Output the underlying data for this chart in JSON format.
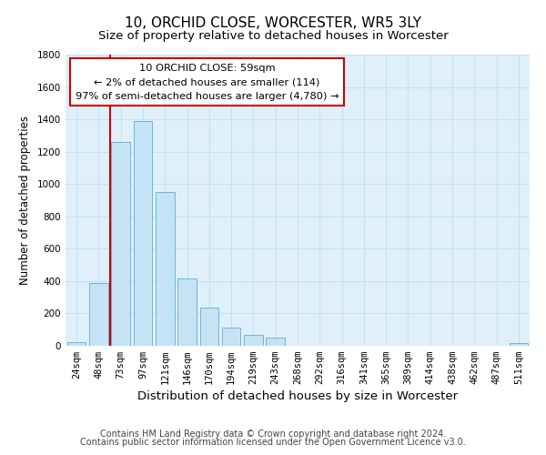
{
  "title": "10, ORCHID CLOSE, WORCESTER, WR5 3LY",
  "subtitle": "Size of property relative to detached houses in Worcester",
  "xlabel": "Distribution of detached houses by size in Worcester",
  "ylabel": "Number of detached properties",
  "bar_labels": [
    "24sqm",
    "48sqm",
    "73sqm",
    "97sqm",
    "121sqm",
    "146sqm",
    "170sqm",
    "194sqm",
    "219sqm",
    "243sqm",
    "268sqm",
    "292sqm",
    "316sqm",
    "341sqm",
    "365sqm",
    "389sqm",
    "414sqm",
    "438sqm",
    "462sqm",
    "487sqm",
    "511sqm"
  ],
  "bar_values": [
    25,
    390,
    1260,
    1390,
    950,
    415,
    235,
    110,
    68,
    50,
    0,
    0,
    0,
    0,
    0,
    0,
    0,
    0,
    0,
    0,
    15
  ],
  "bar_color": "#c5e3f5",
  "bar_edge_color": "#6bb5d8",
  "vline_color": "#cc0000",
  "vline_x": 1.5,
  "annotation_title": "10 ORCHID CLOSE: 59sqm",
  "annotation_line1": "← 2% of detached houses are smaller (114)",
  "annotation_line2": "97% of semi-detached houses are larger (4,780) →",
  "annotation_box_color": "#ffffff",
  "annotation_box_edge": "#cc0000",
  "ylim": [
    0,
    1800
  ],
  "yticks": [
    0,
    200,
    400,
    600,
    800,
    1000,
    1200,
    1400,
    1600,
    1800
  ],
  "grid_color": "#c8dff0",
  "bg_color": "#dff0fa",
  "footer1": "Contains HM Land Registry data © Crown copyright and database right 2024.",
  "footer2": "Contains public sector information licensed under the Open Government Licence v3.0.",
  "title_fontsize": 11,
  "subtitle_fontsize": 9.5,
  "ylabel_fontsize": 8.5,
  "xlabel_fontsize": 9.5,
  "tick_fontsize": 7.5,
  "footer_fontsize": 7
}
